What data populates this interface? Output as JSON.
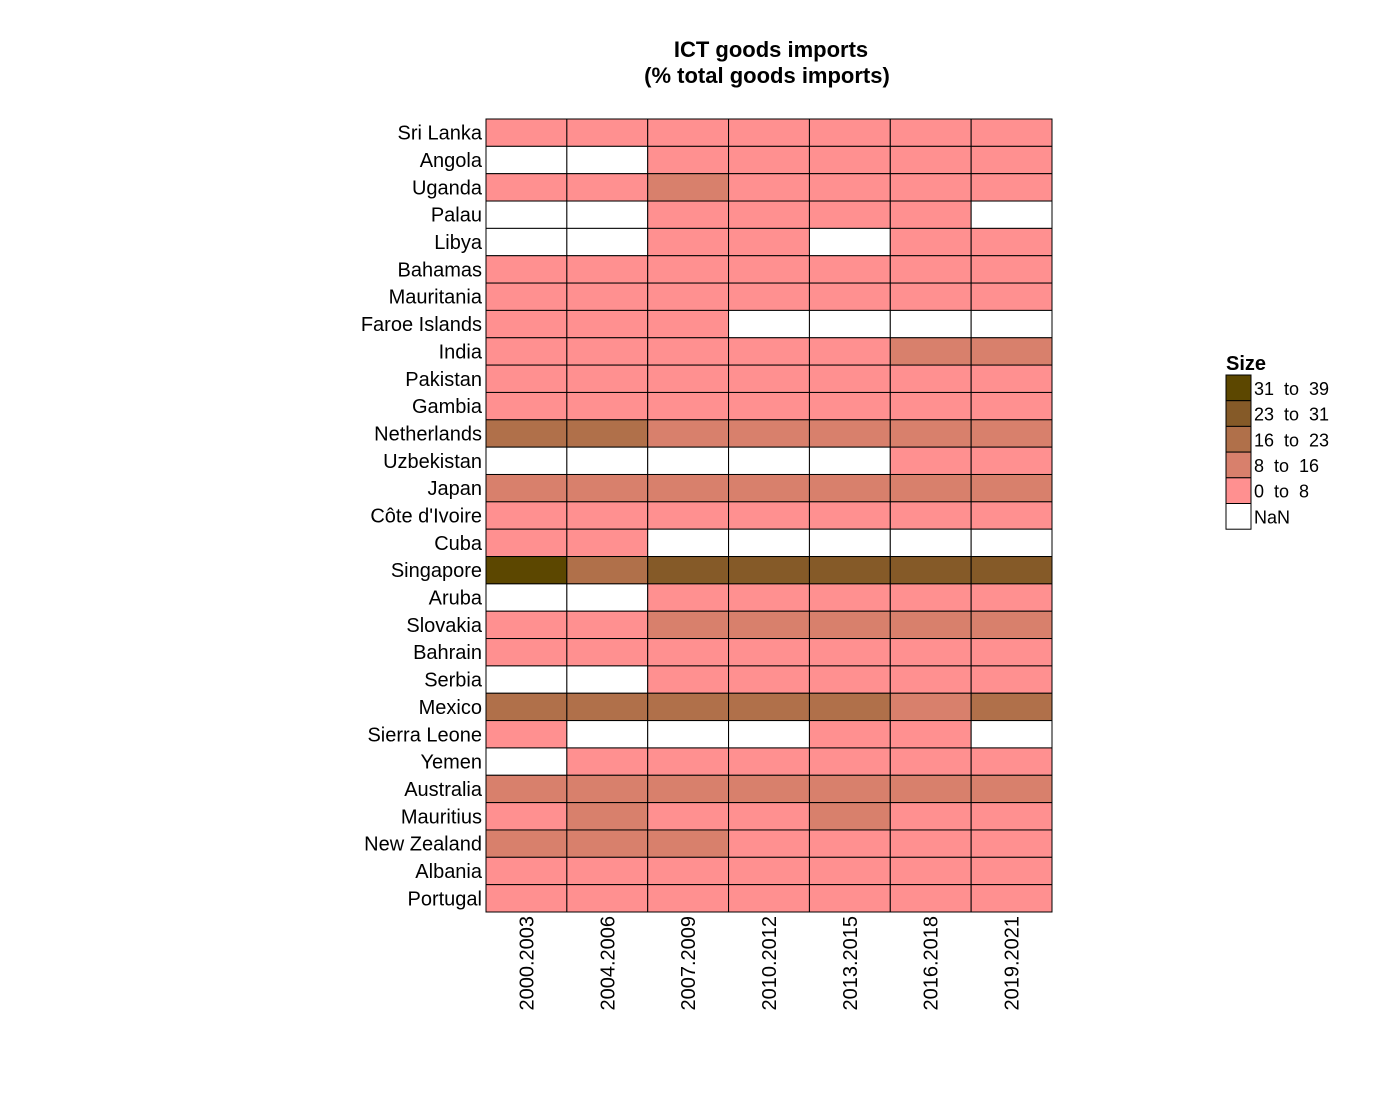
{
  "chart_data": {
    "type": "heatmap",
    "title_lines": [
      "ICT goods imports",
      "(% total goods imports)"
    ],
    "columns": [
      "2000.2003",
      "2004.2006",
      "2007.2009",
      "2010.2012",
      "2013.2015",
      "2016.2018",
      "2019.2021"
    ],
    "rows": [
      "Sri Lanka",
      "Angola",
      "Uganda",
      "Palau",
      "Libya",
      "Bahamas",
      "Mauritania",
      "Faroe Islands",
      "India",
      "Pakistan",
      "Gambia",
      "Netherlands",
      "Uzbekistan",
      "Japan",
      "Côte d'Ivoire",
      "Cuba",
      "Singapore",
      "Aruba",
      "Slovakia",
      "Bahrain",
      "Serbia",
      "Mexico",
      "Sierra Leone",
      "Yemen",
      "Australia",
      "Mauritius",
      "New Zealand",
      "Albania",
      "Portugal"
    ],
    "bin_index_matrix": [
      [
        0,
        0,
        0,
        0,
        0,
        0,
        0
      ],
      [
        null,
        null,
        0,
        0,
        0,
        0,
        0
      ],
      [
        0,
        0,
        1,
        0,
        0,
        0,
        0
      ],
      [
        null,
        null,
        0,
        0,
        0,
        0,
        null
      ],
      [
        null,
        null,
        0,
        0,
        null,
        0,
        0
      ],
      [
        0,
        0,
        0,
        0,
        0,
        0,
        0
      ],
      [
        0,
        0,
        0,
        0,
        0,
        0,
        0
      ],
      [
        0,
        0,
        0,
        null,
        null,
        null,
        null
      ],
      [
        0,
        0,
        0,
        0,
        0,
        1,
        1
      ],
      [
        0,
        0,
        0,
        0,
        0,
        0,
        0
      ],
      [
        0,
        0,
        0,
        0,
        0,
        0,
        0
      ],
      [
        2,
        2,
        1,
        1,
        1,
        1,
        1
      ],
      [
        null,
        null,
        null,
        null,
        null,
        0,
        0
      ],
      [
        1,
        1,
        1,
        1,
        1,
        1,
        1
      ],
      [
        0,
        0,
        0,
        0,
        0,
        0,
        0
      ],
      [
        0,
        0,
        null,
        null,
        null,
        null,
        null
      ],
      [
        4,
        2,
        3,
        3,
        3,
        3,
        3
      ],
      [
        null,
        null,
        0,
        0,
        0,
        0,
        0
      ],
      [
        0,
        0,
        1,
        1,
        1,
        1,
        1
      ],
      [
        0,
        0,
        0,
        0,
        0,
        0,
        0
      ],
      [
        null,
        null,
        0,
        0,
        0,
        0,
        0
      ],
      [
        2,
        2,
        2,
        2,
        2,
        1,
        2
      ],
      [
        0,
        null,
        null,
        null,
        0,
        0,
        null
      ],
      [
        null,
        0,
        0,
        0,
        0,
        0,
        0
      ],
      [
        1,
        1,
        1,
        1,
        1,
        1,
        1
      ],
      [
        0,
        1,
        0,
        0,
        1,
        0,
        0
      ],
      [
        1,
        1,
        1,
        0,
        0,
        0,
        0
      ],
      [
        0,
        0,
        0,
        0,
        0,
        0,
        0
      ],
      [
        0,
        0,
        0,
        0,
        0,
        0,
        0
      ]
    ],
    "legend": {
      "title": "Size",
      "bins": [
        {
          "label": "31  to  39",
          "color": "#5c4700"
        },
        {
          "label": "23  to  31",
          "color": "#855a28"
        },
        {
          "label": "16  to  23",
          "color": "#b0704a"
        },
        {
          "label": "8  to  16",
          "color": "#d8806c"
        },
        {
          "label": "0  to  8",
          "color": "#ff9090"
        },
        {
          "label": "NaN",
          "color": "#ffffff"
        }
      ]
    },
    "bin_colors": [
      "#ff9090",
      "#d8806c",
      "#b0704a",
      "#855a28",
      "#5c4700"
    ],
    "nan_color": "#ffffff"
  }
}
